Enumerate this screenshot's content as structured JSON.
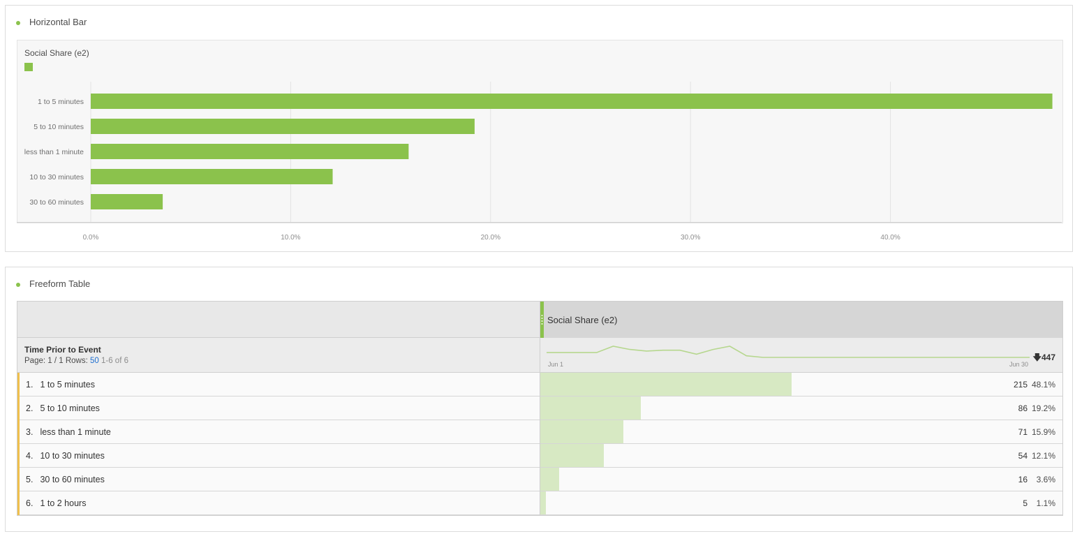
{
  "panels": {
    "bar": {
      "title": "Horizontal Bar"
    },
    "table": {
      "title": "Freeform Table"
    }
  },
  "colors": {
    "accent": "#8bc24c",
    "fill_light": "#d7e9c3",
    "row_accent": "#f0c04c",
    "link": "#1f6fd0"
  },
  "chart_data": {
    "type": "bar",
    "orientation": "horizontal",
    "legend": {
      "entries": [
        "Social Share (e2)"
      ],
      "placement": "top-left"
    },
    "categories": [
      "1 to 5 minutes",
      "5 to 10 minutes",
      "less than 1 minute",
      "10 to 30 minutes",
      "30 to 60 minutes"
    ],
    "series": [
      {
        "name": "Social Share (e2)",
        "values": [
          48.1,
          19.2,
          15.9,
          12.1,
          3.6
        ]
      }
    ],
    "x_ticks": [
      "0.0%",
      "10.0%",
      "20.0%",
      "30.0%",
      "40.0%"
    ],
    "xlim": [
      0,
      48.1
    ],
    "grid": true
  },
  "table": {
    "metric_header": "Social Share (e2)",
    "dimension_title": "Time Prior to Event",
    "pager": {
      "page_label": "Page: 1 / 1",
      "rows_label": "Rows:",
      "rows_value": "50",
      "range": "1-6 of 6"
    },
    "sparkline": {
      "start_label": "Jun 1",
      "end_label": "Jun 30",
      "total": "447",
      "values": [
        13,
        13,
        13,
        13,
        17,
        15,
        14,
        14.5,
        14.5,
        12,
        15,
        17,
        11,
        10,
        10,
        10,
        10,
        10,
        10,
        10,
        10,
        10,
        10,
        10,
        10,
        10,
        10,
        10,
        10,
        10
      ]
    },
    "rows": [
      {
        "index": "1.",
        "label": "1 to 5 minutes",
        "value": "215",
        "pct": "48.1%",
        "fraction": 0.481
      },
      {
        "index": "2.",
        "label": "5 to 10 minutes",
        "value": "86",
        "pct": "19.2%",
        "fraction": 0.192
      },
      {
        "index": "3.",
        "label": "less than 1 minute",
        "value": "71",
        "pct": "15.9%",
        "fraction": 0.159
      },
      {
        "index": "4.",
        "label": "10 to 30 minutes",
        "value": "54",
        "pct": "12.1%",
        "fraction": 0.121
      },
      {
        "index": "5.",
        "label": "30 to 60 minutes",
        "value": "16",
        "pct": "3.6%",
        "fraction": 0.036
      },
      {
        "index": "6.",
        "label": "1 to 2 hours",
        "value": "5",
        "pct": "1.1%",
        "fraction": 0.011
      }
    ]
  }
}
